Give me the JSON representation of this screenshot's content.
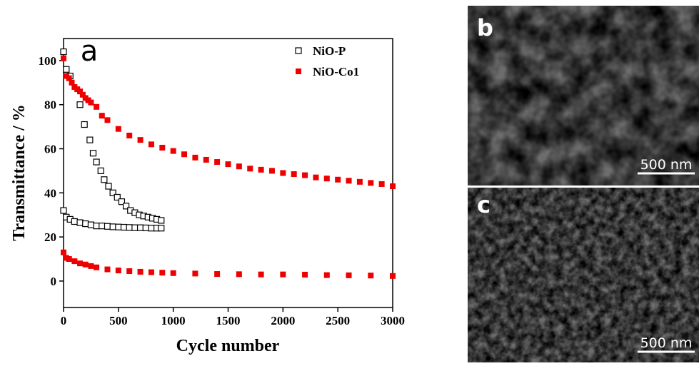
{
  "chart_data": {
    "type": "scatter",
    "x_label": "Cycle number",
    "y_label": "Transmittance / %",
    "annotations": [
      "a"
    ],
    "xlim": [
      0,
      3000
    ],
    "xticks": [
      0,
      500,
      1000,
      1500,
      2000,
      2500,
      3000
    ],
    "ylim": [
      -12,
      110
    ],
    "yticks": [
      0,
      20,
      40,
      60,
      80,
      100
    ],
    "grid": false,
    "legend": "top-right",
    "series": [
      {
        "name": "NiO-P",
        "color": "#000000",
        "filled": false,
        "x": [
          0,
          25,
          60,
          150,
          190,
          240,
          270,
          300,
          340,
          370,
          410,
          450,
          490,
          530,
          570,
          610,
          650,
          690,
          730,
          770,
          810,
          850,
          890,
          0,
          25,
          60,
          100,
          150,
          200,
          250,
          300,
          350,
          400,
          450,
          500,
          550,
          600,
          650,
          700,
          750,
          800,
          850,
          890
        ],
        "values": [
          104,
          96,
          93,
          80,
          71,
          64,
          58,
          54,
          50,
          46,
          43,
          40,
          38,
          36,
          34,
          32,
          31,
          30,
          29.5,
          29,
          28.5,
          28,
          27.5,
          32,
          29,
          28,
          27,
          26.5,
          26,
          25.5,
          25,
          25,
          24.8,
          24.6,
          24.5,
          24.4,
          24.3,
          24.2,
          24.2,
          24.1,
          24,
          24,
          24
        ]
      },
      {
        "name": "NiO-Co1",
        "color": "#ee0000",
        "filled": true,
        "x": [
          0,
          25,
          50,
          75,
          100,
          125,
          150,
          175,
          200,
          225,
          250,
          300,
          350,
          400,
          500,
          600,
          700,
          800,
          900,
          1000,
          1100,
          1200,
          1300,
          1400,
          1500,
          1600,
          1700,
          1800,
          1900,
          2000,
          2100,
          2200,
          2300,
          2400,
          2500,
          2600,
          2700,
          2800,
          2900,
          3000,
          0,
          25,
          50,
          100,
          150,
          200,
          250,
          300,
          400,
          500,
          600,
          700,
          800,
          900,
          1000,
          1200,
          1400,
          1600,
          1800,
          2000,
          2200,
          2400,
          2600,
          2800,
          3000
        ],
        "values": [
          101,
          93,
          92,
          90,
          88,
          87,
          86,
          84.5,
          83,
          82,
          81,
          79,
          75,
          73,
          69,
          66,
          64,
          62,
          60.5,
          59,
          57.5,
          56,
          55,
          54,
          53,
          52,
          51,
          50.5,
          50,
          49,
          48.5,
          48,
          47,
          46.5,
          46,
          45.5,
          45,
          44.5,
          44,
          43,
          13,
          10.5,
          10,
          9,
          8,
          7.5,
          6.8,
          6.2,
          5.3,
          4.8,
          4.5,
          4.2,
          4,
          3.8,
          3.6,
          3.4,
          3.2,
          3.1,
          3,
          3,
          2.9,
          2.7,
          2.6,
          2.5,
          2.3
        ]
      }
    ]
  },
  "images": [
    {
      "label": "b",
      "scale_bar": "500 nm"
    },
    {
      "label": "c",
      "scale_bar": "500 nm"
    }
  ]
}
